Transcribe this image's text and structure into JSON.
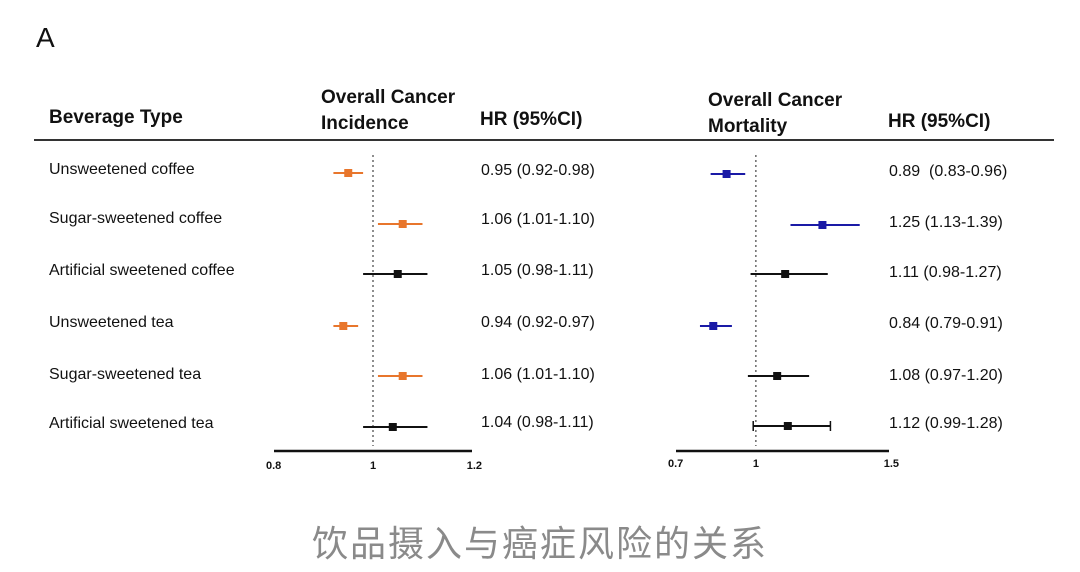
{
  "panel_label": "A",
  "headers": {
    "beverage": "Beverage Type",
    "incidence_title_line1": "Overall Cancer",
    "incidence_title_line2": "Incidence",
    "incidence_hr": "HR (95%CI)",
    "mortality_title_line1": "Overall Cancer",
    "mortality_title_line2": "Mortality",
    "mortality_hr": "HR (95%CI)"
  },
  "rows": [
    {
      "label": "Unsweetened coffee",
      "inc_text": "0.95 (0.92-0.98)",
      "mort_text": "0.89  (0.83-0.96)"
    },
    {
      "label": "Sugar-sweetened coffee",
      "inc_text": "1.06 (1.01-1.10)",
      "mort_text": "1.25 (1.13-1.39)"
    },
    {
      "label": "Artificial sweetened coffee",
      "inc_text": "1.05 (0.98-1.11)",
      "mort_text": "1.11 (0.98-1.27)"
    },
    {
      "label": "Unsweetened tea",
      "inc_text": "0.94 (0.92-0.97)",
      "mort_text": "0.84 (0.79-0.91)"
    },
    {
      "label": "Sugar-sweetened tea",
      "inc_text": "1.06 (1.01-1.10)",
      "mort_text": "1.08 (0.97-1.20)"
    },
    {
      "label": "Artificial sweetened tea",
      "inc_text": "1.04 (0.98-1.11)",
      "mort_text": "1.12 (0.99-1.28)"
    }
  ],
  "caption": "饮品摄入与癌症风险的关系",
  "colors": {
    "orange": "#e8762c",
    "blue": "#1a1aa6",
    "black": "#111111"
  },
  "chart_data": [
    {
      "type": "forest",
      "title": "Overall Cancer Incidence",
      "categories": [
        "Unsweetened coffee",
        "Sugar-sweetened coffee",
        "Artificial sweetened coffee",
        "Unsweetened tea",
        "Sugar-sweetened tea",
        "Artificial sweetened tea"
      ],
      "hr": [
        0.95,
        1.06,
        1.05,
        0.94,
        1.06,
        1.04
      ],
      "ci_low": [
        0.92,
        1.01,
        0.98,
        0.92,
        1.01,
        0.98
      ],
      "ci_high": [
        0.98,
        1.1,
        1.11,
        0.97,
        1.1,
        1.11
      ],
      "marker_color": [
        "orange",
        "orange",
        "black",
        "orange",
        "orange",
        "black"
      ],
      "xlim": [
        0.8,
        1.2
      ],
      "ticks": [
        "0.8",
        "1",
        "1.2"
      ],
      "reference_line": 1
    },
    {
      "type": "forest",
      "title": "Overall Cancer Mortality",
      "categories": [
        "Unsweetened coffee",
        "Sugar-sweetened coffee",
        "Artificial sweetened coffee",
        "Unsweetened tea",
        "Sugar-sweetened tea",
        "Artificial sweetened tea"
      ],
      "hr": [
        0.89,
        1.25,
        1.11,
        0.84,
        1.08,
        1.12
      ],
      "ci_low": [
        0.83,
        1.13,
        0.98,
        0.79,
        0.97,
        0.99
      ],
      "ci_high": [
        0.96,
        1.39,
        1.27,
        0.91,
        1.2,
        1.28
      ],
      "marker_color": [
        "blue",
        "blue",
        "black",
        "blue",
        "black",
        "black"
      ],
      "xlim": [
        0.7,
        1.5
      ],
      "ticks": [
        "0.7",
        "1",
        "1.5"
      ],
      "reference_line": 1
    }
  ]
}
